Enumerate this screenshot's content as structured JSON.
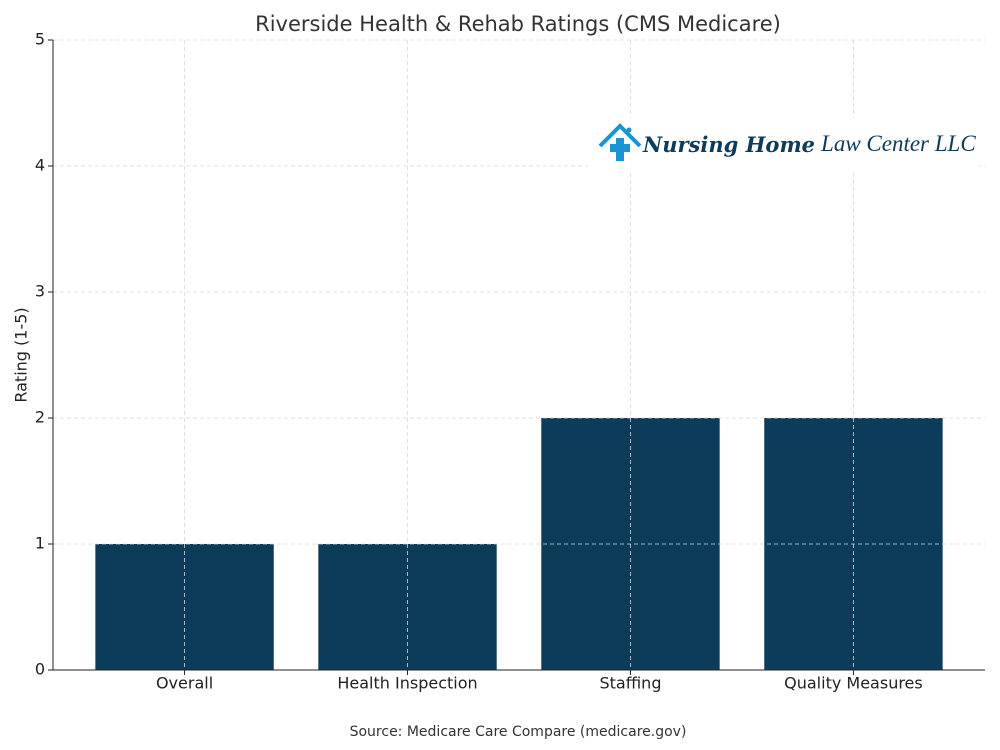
{
  "chart_data": {
    "type": "bar",
    "title": "Riverside Health & Rehab Ratings (CMS Medicare)",
    "y_label": "Rating (1-5)",
    "categories": [
      "Overall",
      "Health Inspection",
      "Staffing",
      "Quality Measures"
    ],
    "values": [
      1,
      1,
      2,
      2
    ],
    "color": "#0d3b5a",
    "ylim": [
      0,
      5
    ],
    "yticks": [
      0,
      1,
      2,
      3,
      4,
      5
    ],
    "grid": true,
    "source": "Source: Medicare Care Compare (medicare.gov)"
  },
  "logo": {
    "bold": "Nursing Home",
    "light": "Law Center LLC"
  }
}
